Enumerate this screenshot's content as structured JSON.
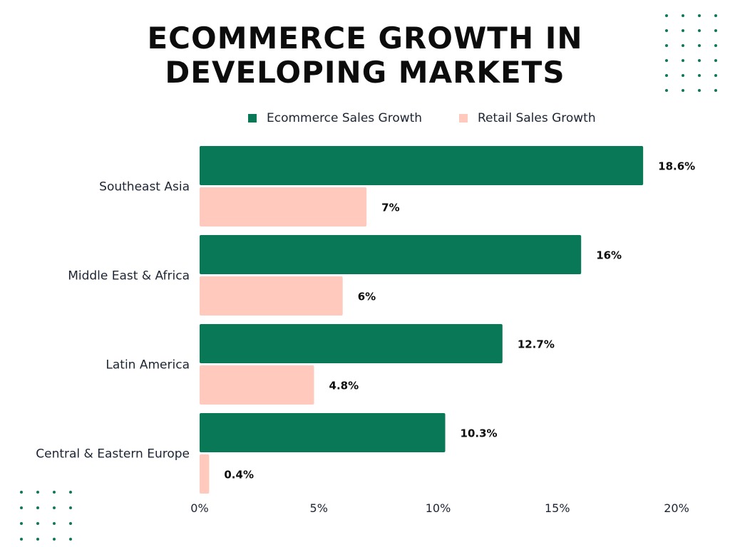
{
  "chart_data": {
    "type": "bar",
    "orientation": "horizontal",
    "title_lines": [
      "ECOMMERCE GROWTH IN",
      "DEVELOPING MARKETS"
    ],
    "categories": [
      "Southeast Asia",
      "Middle East & Africa",
      "Latin America",
      "Central & Eastern Europe"
    ],
    "series": [
      {
        "name": "Ecommerce Sales Growth",
        "color": "#097857",
        "values": [
          18.6,
          16,
          12.7,
          10.3
        ],
        "labels": [
          "18.6%",
          "16%",
          "12.7%",
          "10.3%"
        ]
      },
      {
        "name": "Retail Sales Growth",
        "color": "#ffcabd",
        "values": [
          7,
          6,
          4.8,
          0.4
        ],
        "labels": [
          "7%",
          "6%",
          "4.8%",
          "0.4%"
        ]
      }
    ],
    "xlim": [
      0,
      20
    ],
    "xticks": [
      0,
      5,
      10,
      15,
      20
    ],
    "xtick_labels": [
      "0%",
      "5%",
      "10%",
      "15%",
      "20%"
    ],
    "grid": false,
    "legend_position": "top"
  },
  "decoration": {
    "dot_color": "#0e7a52"
  }
}
